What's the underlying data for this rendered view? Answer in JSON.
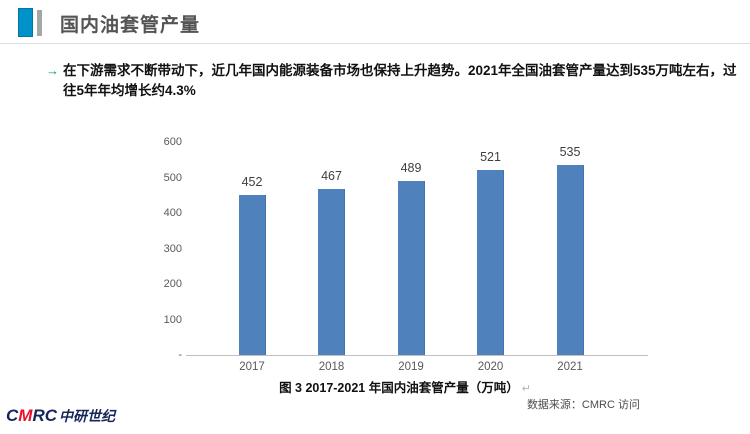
{
  "header": {
    "title": "国内油套管产量",
    "accent_blue": "#0092C8",
    "accent_gray": "#A6A6A6"
  },
  "bullet": {
    "arrow": "→",
    "arrow_color": "#00A651",
    "text": "在下游需求不断带动下，近几年国内能源装备市场也保持上升趋势。2021年全国油套管产量达到535万吨左右，过往5年年均增长约4.3%"
  },
  "chart_data": {
    "type": "bar",
    "categories": [
      "2017",
      "2018",
      "2019",
      "2020",
      "2021"
    ],
    "values": [
      452,
      467,
      489,
      521,
      535
    ],
    "title": "图 3 2017-2021 年国内油套管产量（万吨）",
    "xlabel": "",
    "ylabel": "",
    "ylim": [
      0,
      600
    ],
    "ytick_values": [
      600,
      500,
      400,
      300,
      200,
      100,
      0
    ],
    "ytick_labels": [
      "600",
      "500",
      "400",
      "300",
      "200",
      "100",
      "-"
    ],
    "grid": false,
    "legend": false,
    "bar_color": "#4F81BD",
    "bar_border_color": "#4373A8"
  },
  "caption": {
    "text": "图 3 2017-2021 年国内油套管产量（万吨）",
    "return_mark": "↵"
  },
  "source": {
    "text": "数据来源：CMRC 访问"
  },
  "logo": {
    "part_c": "C",
    "part_m": "M",
    "part_rc": "RC",
    "part_cn": "中研世纪",
    "navy": "#15265B",
    "red": "#E8112D"
  }
}
